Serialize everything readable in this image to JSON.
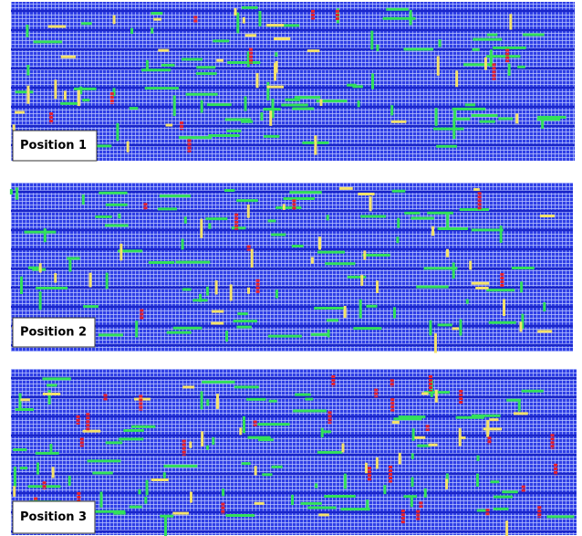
{
  "panels": [
    {
      "label": "Position 1"
    },
    {
      "label": "Position 2"
    },
    {
      "label": "Position 3"
    }
  ]
}
